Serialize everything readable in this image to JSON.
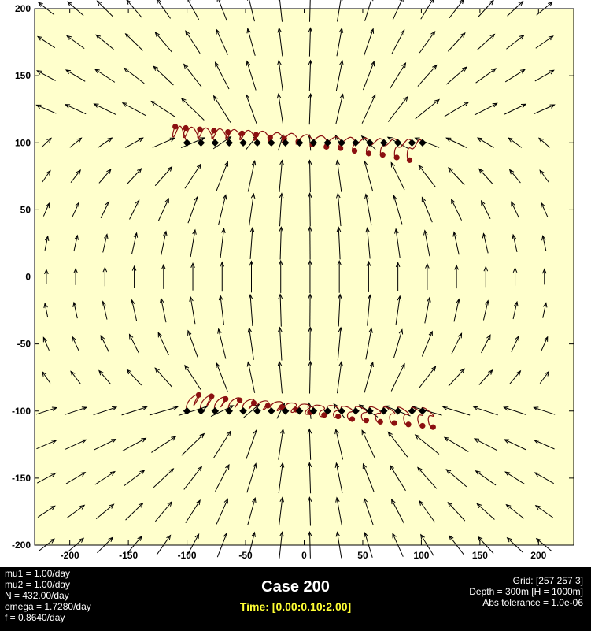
{
  "chart_data": {
    "type": "quiver",
    "title": "",
    "xlabel": "",
    "ylabel": "",
    "xlim": [
      -230,
      230
    ],
    "ylim": [
      -200,
      200
    ],
    "xticks": [
      -200,
      -150,
      -100,
      -50,
      0,
      50,
      100,
      150,
      200
    ],
    "yticks": [
      -200,
      -150,
      -100,
      -50,
      0,
      50,
      100,
      150,
      200
    ],
    "xtick_labels": [
      "-200",
      "-150",
      "-100",
      "-50",
      "0",
      "50",
      "100",
      "150",
      "200"
    ],
    "ytick_labels": [
      "-200",
      "-150",
      "-100",
      "-50",
      "0",
      "50",
      "100",
      "150",
      "200"
    ],
    "grid": false,
    "background_color": "#ffffcc",
    "vector_field": {
      "description_type": "dipole-like velocity field from two vortex rows at y=+100 and y=-100",
      "x_range": [
        -220,
        220
      ],
      "y_range": [
        -200,
        200
      ],
      "spacing": 25,
      "color": "#000000"
    },
    "series": [
      {
        "marker": "diamond",
        "color": "#000000",
        "points_upper": [
          [
            -100,
            100
          ],
          [
            -88,
            100
          ],
          [
            -76,
            100
          ],
          [
            -64,
            100
          ],
          [
            -52,
            100
          ],
          [
            -40,
            100
          ],
          [
            -28,
            100
          ],
          [
            -16,
            100
          ],
          [
            -4,
            100
          ],
          [
            8,
            100
          ],
          [
            20,
            100
          ],
          [
            32,
            100
          ],
          [
            44,
            100
          ],
          [
            56,
            100
          ],
          [
            68,
            100
          ],
          [
            80,
            100
          ],
          [
            92,
            100
          ],
          [
            101,
            100
          ]
        ],
        "points_lower": [
          [
            -100,
            -100
          ],
          [
            -88,
            -100
          ],
          [
            -76,
            -100
          ],
          [
            -64,
            -100
          ],
          [
            -52,
            -100
          ],
          [
            -40,
            -100
          ],
          [
            -28,
            -100
          ],
          [
            -16,
            -100
          ],
          [
            -4,
            -100
          ],
          [
            8,
            -100
          ],
          [
            20,
            -100
          ],
          [
            32,
            -100
          ],
          [
            44,
            -100
          ],
          [
            56,
            -100
          ],
          [
            68,
            -100
          ],
          [
            80,
            -100
          ],
          [
            92,
            -100
          ],
          [
            101,
            -100
          ]
        ]
      },
      {
        "marker": "circle",
        "color": "#8b1010",
        "points_upper": [
          [
            -110,
            112
          ],
          [
            -101,
            111
          ],
          [
            -89,
            110
          ],
          [
            -77,
            109
          ],
          [
            -65,
            108
          ],
          [
            -53,
            107
          ],
          [
            -41,
            106
          ],
          [
            -29,
            104
          ],
          [
            -17,
            103
          ],
          [
            -5,
            101
          ],
          [
            7,
            99
          ],
          [
            19,
            97
          ],
          [
            31,
            96
          ],
          [
            43,
            94
          ],
          [
            55,
            92
          ],
          [
            67,
            91
          ],
          [
            79,
            89
          ],
          [
            90,
            87
          ]
        ],
        "points_lower": [
          [
            -90,
            -88
          ],
          [
            -79,
            -89
          ],
          [
            -67,
            -91
          ],
          [
            -55,
            -92
          ],
          [
            -43,
            -94
          ],
          [
            -31,
            -96
          ],
          [
            -19,
            -97
          ],
          [
            -7,
            -99
          ],
          [
            5,
            -101
          ],
          [
            17,
            -103
          ],
          [
            29,
            -104
          ],
          [
            41,
            -106
          ],
          [
            53,
            -107
          ],
          [
            65,
            -108
          ],
          [
            77,
            -109
          ],
          [
            89,
            -110
          ],
          [
            101,
            -111
          ],
          [
            110,
            -112
          ]
        ]
      }
    ]
  },
  "info": {
    "params": [
      "mu1 = 1.00/day",
      "mu2 = 1.00/day",
      "N = 432.00/day",
      "omega = 1.7280/day",
      "f = 0.8640/day"
    ],
    "title": "Case 200",
    "time": "Time: [0.00:0.10:2.00]",
    "meta": [
      "Grid: [257 257 3]",
      "Depth = 300m  [H = 1000m]",
      "Abs tolerance = 1.0e-06"
    ]
  },
  "colors": {
    "plot_bg": "#ffffcc",
    "figure_bg": "#ffffff",
    "info_bg": "#000000",
    "time_text": "#ffff33",
    "trajectory": "#8b1010"
  }
}
